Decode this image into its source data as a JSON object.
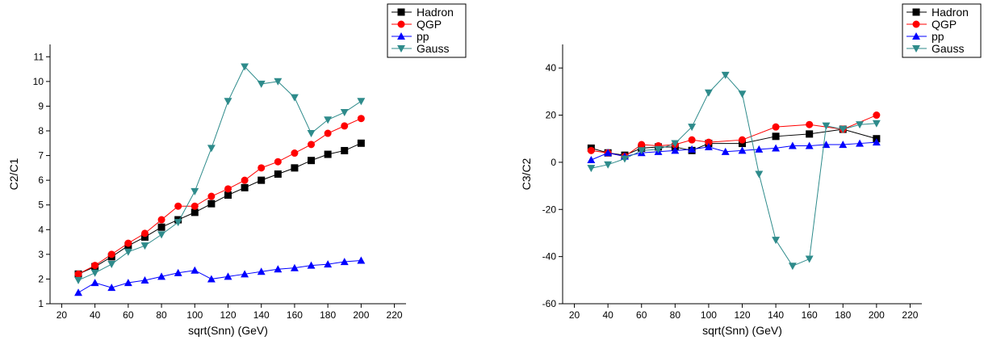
{
  "chart_data": [
    {
      "type": "line",
      "xlabel": "sqrt(Snn) (GeV)",
      "ylabel": "C2/C1",
      "xlim": [
        13,
        227
      ],
      "xticks": [
        20,
        40,
        60,
        80,
        100,
        120,
        140,
        160,
        180,
        200,
        220
      ],
      "ylim": [
        1,
        11.5
      ],
      "yticks": [
        1,
        2,
        3,
        4,
        5,
        6,
        7,
        8,
        9,
        10,
        11
      ],
      "legend": "top-right",
      "series": [
        {
          "name": "Hadron",
          "color": "#000000",
          "marker": "square",
          "x": [
            30,
            40,
            50,
            60,
            70,
            80,
            90,
            100,
            110,
            120,
            130,
            140,
            150,
            160,
            170,
            180,
            190,
            200
          ],
          "values": [
            2.2,
            2.5,
            2.9,
            3.35,
            3.7,
            4.1,
            4.4,
            4.7,
            5.05,
            5.4,
            5.7,
            6.0,
            6.25,
            6.5,
            6.8,
            7.05,
            7.2,
            7.5
          ]
        },
        {
          "name": "QGP",
          "color": "#ff0000",
          "marker": "circle",
          "x": [
            30,
            40,
            50,
            60,
            70,
            80,
            90,
            100,
            110,
            120,
            130,
            140,
            150,
            160,
            170,
            180,
            190,
            200
          ],
          "values": [
            2.2,
            2.55,
            3.0,
            3.45,
            3.85,
            4.4,
            4.95,
            4.95,
            5.35,
            5.65,
            6.0,
            6.5,
            6.75,
            7.1,
            7.45,
            7.9,
            8.2,
            8.5
          ]
        },
        {
          "name": "pp",
          "color": "#0000ff",
          "marker": "triangle-up",
          "x": [
            30,
            40,
            50,
            60,
            70,
            80,
            90,
            100,
            110,
            120,
            130,
            140,
            150,
            160,
            170,
            180,
            190,
            200
          ],
          "values": [
            1.45,
            1.85,
            1.65,
            1.85,
            1.95,
            2.1,
            2.25,
            2.35,
            2.0,
            2.1,
            2.2,
            2.3,
            2.4,
            2.45,
            2.55,
            2.6,
            2.7,
            2.75
          ]
        },
        {
          "name": "Gauss",
          "color": "#2e8b8b",
          "marker": "triangle-down",
          "x": [
            30,
            40,
            50,
            60,
            70,
            80,
            90,
            100,
            110,
            120,
            130,
            140,
            150,
            160,
            170,
            180,
            190,
            200
          ],
          "values": [
            1.95,
            2.25,
            2.6,
            3.1,
            3.35,
            3.8,
            4.3,
            5.55,
            7.3,
            9.2,
            10.6,
            9.9,
            10.0,
            9.35,
            7.9,
            8.45,
            8.75,
            9.2
          ]
        }
      ]
    },
    {
      "type": "line",
      "xlabel": "sqrt(Snn) (GeV)",
      "ylabel": "C3/C2",
      "xlim": [
        13,
        227
      ],
      "xticks": [
        20,
        40,
        60,
        80,
        100,
        120,
        140,
        160,
        180,
        200,
        220
      ],
      "ylim": [
        -60,
        50
      ],
      "yticks": [
        -60,
        -40,
        -20,
        0,
        20,
        40
      ],
      "legend": "top-right",
      "series": [
        {
          "name": "Hadron",
          "color": "#000000",
          "marker": "square",
          "x": [
            30,
            40,
            50,
            60,
            70,
            80,
            90,
            100,
            120,
            140,
            160,
            180,
            200
          ],
          "values": [
            6,
            4,
            3,
            6,
            6.5,
            6.5,
            5,
            8,
            8,
            11,
            12,
            14,
            10
          ]
        },
        {
          "name": "QGP",
          "color": "#ff0000",
          "marker": "circle",
          "x": [
            30,
            40,
            50,
            60,
            70,
            80,
            90,
            100,
            120,
            140,
            160,
            180,
            200
          ],
          "values": [
            5,
            4,
            2.5,
            7.5,
            7,
            7.5,
            9.5,
            8.5,
            9.5,
            15,
            16,
            14,
            20
          ]
        },
        {
          "name": "pp",
          "color": "#0000ff",
          "marker": "triangle-up",
          "x": [
            30,
            40,
            50,
            60,
            70,
            80,
            90,
            100,
            110,
            120,
            130,
            140,
            150,
            160,
            170,
            180,
            190,
            200
          ],
          "values": [
            1,
            4,
            2.5,
            4,
            4.5,
            5,
            5.5,
            6.5,
            4.5,
            5,
            5.5,
            6,
            7,
            7,
            7.5,
            7.5,
            8,
            8.5
          ]
        },
        {
          "name": "Gauss",
          "color": "#2e8b8b",
          "marker": "triangle-down",
          "x": [
            30,
            40,
            50,
            60,
            70,
            80,
            90,
            100,
            110,
            120,
            130,
            140,
            150,
            160,
            170,
            180,
            190,
            200
          ],
          "values": [
            -2.5,
            -1,
            1.5,
            5,
            5.5,
            8,
            15,
            29.5,
            37,
            29,
            -5,
            -33,
            -44,
            -41,
            15.5,
            14,
            16,
            16.5
          ]
        }
      ]
    }
  ]
}
